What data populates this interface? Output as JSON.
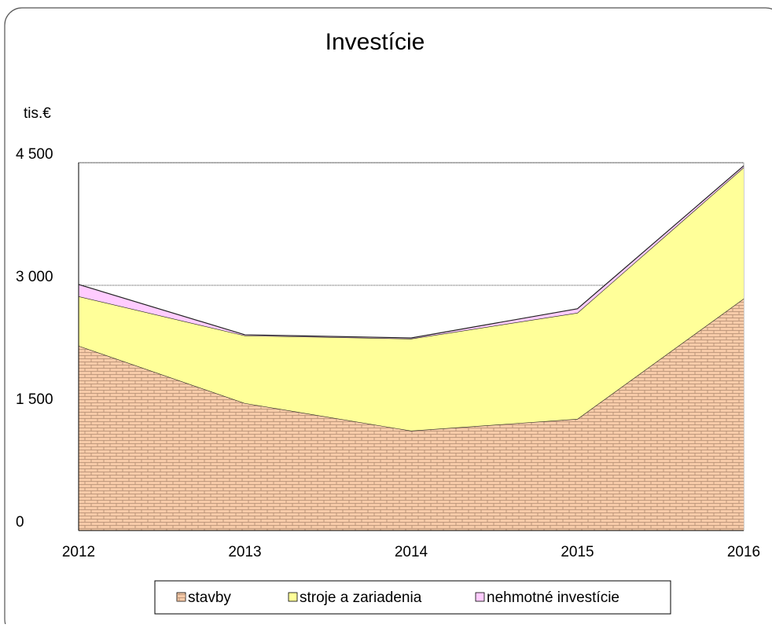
{
  "chart_data": {
    "type": "stacked_area",
    "title": "Investície",
    "y_label": "tis.€",
    "categories": [
      "2012",
      "2013",
      "2014",
      "2015",
      "2016"
    ],
    "series": [
      {
        "name": "stavby",
        "color": "#f7cba9",
        "values": [
          2260,
          1558,
          1221,
          1365,
          2837
        ]
      },
      {
        "name": "stroje a zariadenia",
        "color": "#ffff99",
        "values": [
          605,
          827,
          1125,
          1298,
          1605
        ]
      },
      {
        "name": "nehmotné investície",
        "color": "#ffccff",
        "values": [
          145,
          10,
          10,
          50,
          20
        ]
      }
    ],
    "ylim": [
      0,
      4500
    ],
    "yticks": [
      0,
      {
        "value": 1500,
        "label": "1 500"
      },
      {
        "value": 3000,
        "label": "3 000"
      },
      {
        "value": 4500,
        "label": "4 500"
      }
    ],
    "grid": true,
    "legend": "bottom"
  }
}
